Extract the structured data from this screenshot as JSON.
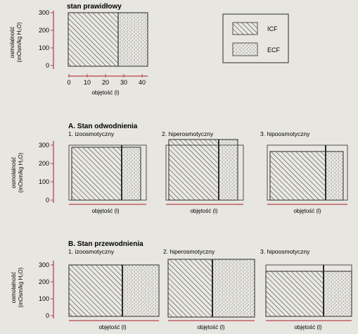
{
  "normal": {
    "title": "stan prawidłowy",
    "y_ticks": [
      "300",
      "200",
      "100",
      "0"
    ],
    "y_label_line1": "osmolalność",
    "y_label_line2": "(mOsm/kg H₂O)",
    "x_ticks": [
      "0",
      "10",
      "20",
      "30",
      "40"
    ],
    "x_label": "objętość (l)"
  },
  "legend": {
    "icf": "ICF",
    "ecf": "ECF"
  },
  "dehydration": {
    "title": "A. Stan odwodnienia",
    "panels": [
      {
        "label": "1. izoosmotyczny",
        "x_label": "objętość (l)"
      },
      {
        "label": "2. hiperosmotyczny",
        "x_label": "objętość (l)"
      },
      {
        "label": "3. hipoosmotyczny",
        "x_label": "objętość (l)"
      }
    ],
    "y_ticks": [
      "300",
      "200",
      "100",
      "0"
    ],
    "y_label_line1": "osmolalność",
    "y_label_line2": "(mOsm/kg H₂O)"
  },
  "overhydration": {
    "title": "B. Stan przewodnienia",
    "panels": [
      {
        "label": "1. izoosmotyczny",
        "x_label": "objętość (l)"
      },
      {
        "label": "2. hiperosmotyczny",
        "x_label": "objętość (l)"
      },
      {
        "label": "3. hipoosmotyczny",
        "x_label": "objętość (l)"
      }
    ],
    "y_ticks": [
      "300",
      "200",
      "100",
      "0"
    ],
    "y_label_line1": "osmolalność",
    "y_label_line2": "(mOsm/kg H₂O)"
  },
  "colors": {
    "background": "#e7e6e1",
    "ink": "#2a2a2a",
    "red_axis": "#b8434b"
  }
}
